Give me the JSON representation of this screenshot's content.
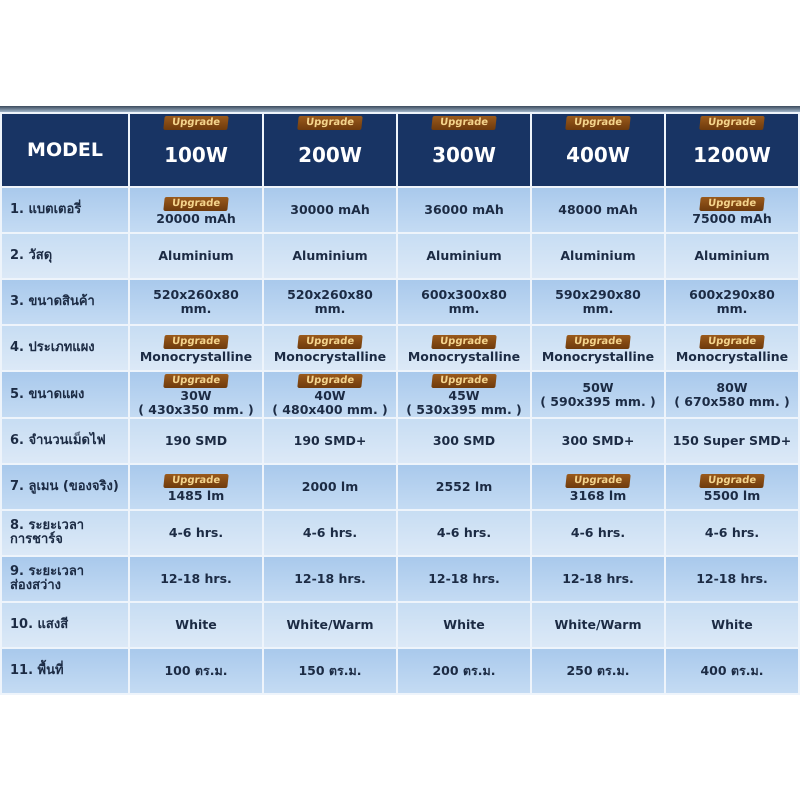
{
  "header": {
    "model_label": "MODEL",
    "upgrade_label": "Upgrade",
    "models": [
      "100W",
      "200W",
      "300W",
      "400W",
      "1200W"
    ]
  },
  "colors": {
    "header_bg": "#183464",
    "row_bg": "#b8d3ee",
    "badge": "#8a4a12",
    "badge_text": "#f3d38c"
  },
  "rows": [
    {
      "label": "1. แบตเตอรี่",
      "cells": [
        {
          "v": "20000 mAh",
          "up": true
        },
        {
          "v": "30000 mAh"
        },
        {
          "v": "36000 mAh"
        },
        {
          "v": "48000 mAh"
        },
        {
          "v": "75000 mAh",
          "up": true
        }
      ]
    },
    {
      "label": "2. วัสดุ",
      "cells": [
        {
          "v": "Aluminium"
        },
        {
          "v": "Aluminium"
        },
        {
          "v": "Aluminium"
        },
        {
          "v": "Aluminium"
        },
        {
          "v": "Aluminium"
        }
      ]
    },
    {
      "label": "3. ขนาดสินค้า",
      "cells": [
        {
          "v": "520x260x80\nmm."
        },
        {
          "v": "520x260x80\nmm."
        },
        {
          "v": "600x300x80\nmm."
        },
        {
          "v": "590x290x80\nmm."
        },
        {
          "v": "600x290x80\nmm."
        }
      ]
    },
    {
      "label": "4. ประเภทแผง",
      "cells": [
        {
          "v": "Monocrystalline",
          "up": true
        },
        {
          "v": "Monocrystalline",
          "up": true
        },
        {
          "v": "Monocrystalline",
          "up": true
        },
        {
          "v": "Monocrystalline",
          "up": true
        },
        {
          "v": "Monocrystalline",
          "up": true
        }
      ]
    },
    {
      "label": "5. ขนาดแผง",
      "cells": [
        {
          "v": "30W\n( 430x350 mm. )",
          "up": true
        },
        {
          "v": "40W\n( 480x400 mm. )",
          "up": true
        },
        {
          "v": "45W\n( 530x395 mm. )",
          "up": true
        },
        {
          "v": "50W\n( 590x395 mm. )"
        },
        {
          "v": "80W\n( 670x580 mm. )"
        }
      ]
    },
    {
      "label": "6. จำนวนเม็ดไฟ",
      "cells": [
        {
          "v": "190 SMD"
        },
        {
          "v": "190 SMD+"
        },
        {
          "v": "300 SMD"
        },
        {
          "v": "300 SMD+"
        },
        {
          "v": "150 Super SMD+"
        }
      ]
    },
    {
      "label": "7. ลูเมน (ของจริง)",
      "cells": [
        {
          "v": "1485 lm",
          "up": true
        },
        {
          "v": "2000 lm"
        },
        {
          "v": "2552 lm"
        },
        {
          "v": "3168 lm",
          "up": true
        },
        {
          "v": "5500 lm",
          "up": true
        }
      ]
    },
    {
      "label": "8. ระยะเวลา\nการชาร์จ",
      "cells": [
        {
          "v": "4-6 hrs."
        },
        {
          "v": "4-6 hrs."
        },
        {
          "v": "4-6 hrs."
        },
        {
          "v": "4-6 hrs."
        },
        {
          "v": "4-6 hrs."
        }
      ]
    },
    {
      "label": "9. ระยะเวลา\nส่องสว่าง",
      "cells": [
        {
          "v": "12-18 hrs."
        },
        {
          "v": "12-18 hrs."
        },
        {
          "v": "12-18 hrs."
        },
        {
          "v": "12-18 hrs."
        },
        {
          "v": "12-18 hrs."
        }
      ]
    },
    {
      "label": "10. แสงสี",
      "cells": [
        {
          "v": "White"
        },
        {
          "v": "White/Warm"
        },
        {
          "v": "White"
        },
        {
          "v": "White/Warm"
        },
        {
          "v": "White"
        }
      ]
    },
    {
      "label": "11. พื้นที่",
      "cells": [
        {
          "v": "100 ตร.ม."
        },
        {
          "v": "150 ตร.ม."
        },
        {
          "v": "200 ตร.ม."
        },
        {
          "v": "250 ตร.ม."
        },
        {
          "v": "400 ตร.ม."
        }
      ]
    }
  ]
}
